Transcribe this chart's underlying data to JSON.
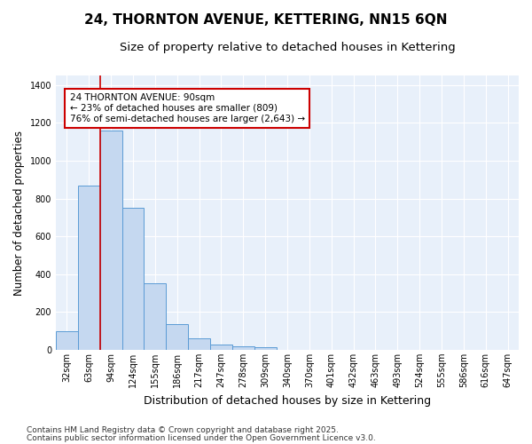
{
  "title": "24, THORNTON AVENUE, KETTERING, NN15 6QN",
  "subtitle": "Size of property relative to detached houses in Kettering",
  "xlabel": "Distribution of detached houses by size in Kettering",
  "ylabel": "Number of detached properties",
  "categories": [
    "32sqm",
    "63sqm",
    "94sqm",
    "124sqm",
    "155sqm",
    "186sqm",
    "217sqm",
    "247sqm",
    "278sqm",
    "309sqm",
    "340sqm",
    "370sqm",
    "401sqm",
    "432sqm",
    "463sqm",
    "493sqm",
    "524sqm",
    "555sqm",
    "586sqm",
    "616sqm",
    "647sqm"
  ],
  "values": [
    100,
    870,
    1160,
    750,
    350,
    135,
    60,
    30,
    18,
    12,
    0,
    0,
    0,
    0,
    0,
    0,
    0,
    0,
    0,
    0,
    0
  ],
  "bar_color": "#c5d8f0",
  "bar_edge_color": "#5b9bd5",
  "background_color": "#ffffff",
  "plot_bg_color": "#e8f0fa",
  "grid_color": "#ffffff",
  "vline_color": "#cc0000",
  "vline_x": 2,
  "annotation_text": "24 THORNTON AVENUE: 90sqm\n← 23% of detached houses are smaller (809)\n76% of semi-detached houses are larger (2,643) →",
  "annotation_box_facecolor": "#ffffff",
  "annotation_box_edgecolor": "#cc0000",
  "ylim": [
    0,
    1450
  ],
  "yticks": [
    0,
    200,
    400,
    600,
    800,
    1000,
    1200,
    1400
  ],
  "footer_line1": "Contains HM Land Registry data © Crown copyright and database right 2025.",
  "footer_line2": "Contains public sector information licensed under the Open Government Licence v3.0.",
  "title_fontsize": 11,
  "subtitle_fontsize": 9.5,
  "xlabel_fontsize": 9,
  "ylabel_fontsize": 8.5,
  "tick_fontsize": 7,
  "annot_fontsize": 7.5,
  "footer_fontsize": 6.5
}
